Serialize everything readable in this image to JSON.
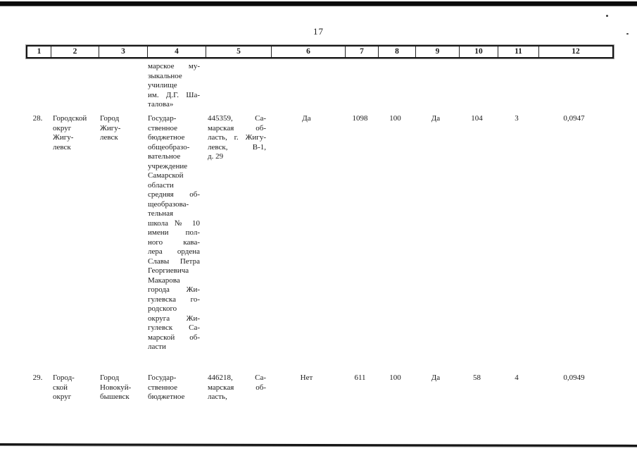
{
  "page": {
    "number": "17"
  },
  "table": {
    "header": [
      "1",
      "2",
      "3",
      "4",
      "5",
      "6",
      "7",
      "8",
      "9",
      "10",
      "11",
      "12"
    ],
    "rows": [
      {
        "num": "",
        "col2": "",
        "col3": "",
        "col4": "марское му-\nзыкальное\nучилище\nим. Д.Г. Ша-\nталова»",
        "col5": "",
        "col6": "",
        "col7": "",
        "col8": "",
        "col9": "",
        "col10": "",
        "col11": "",
        "col12": ""
      },
      {
        "num": "28.",
        "col2": "Городской\nокруг\nЖигу-\nлевск",
        "col3": "Город\nЖигу-\nлевск",
        "col4": "Государ-\nственное\nбюджетное\nобщеобразо-\nвательное\nучреждение\nСамарской\nобласти\nсредняя об-\nщеобразова-\nтельная\nшкола № 10\nимени пол-\nного кава-\nлера ордена\nСлавы Петра\nГеоргиевича\nМакарова\nгорода Жи-\nгулевска го-\nродского\nокруга Жи-\nгулевск Са-\nмарской об-\nласти",
        "col5": "445359, Са-\nмарская об-\nласть, г. Жигу-\nлевск, В-1,\nд. 29",
        "col6": "Да",
        "col7": "1098",
        "col8": "100",
        "col9": "Да",
        "col10": "104",
        "col11": "3",
        "col12": "0,0947"
      },
      {
        "num": "29.",
        "col2": "Город-\nской\nокруг",
        "col3": "Город\nНовокуй-\nбышевск",
        "col4": "Государ-\nственное\nбюджетное",
        "col5": "446218, Са-\nмарская об-\nласть,",
        "col6": "Нет",
        "col7": "611",
        "col8": "100",
        "col9": "Да",
        "col10": "58",
        "col11": "4",
        "col12": "0,0949"
      }
    ]
  }
}
